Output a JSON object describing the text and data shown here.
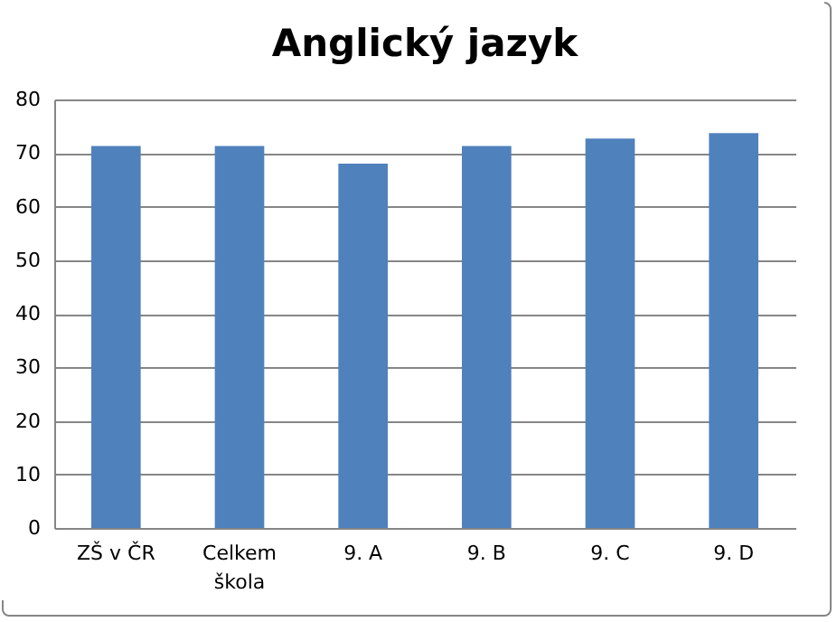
{
  "chart_data": {
    "type": "bar",
    "title": "Anglický jazyk",
    "categories": [
      "ZŠ v ČR",
      "Celkem škola",
      "9. A",
      "9. B",
      "9. C",
      "9. D"
    ],
    "values": [
      71.3,
      71.3,
      68,
      71.3,
      72.7,
      73.7
    ],
    "color": "#4f81bd",
    "ylim": [
      0,
      80
    ],
    "yticks": [
      0,
      10,
      20,
      30,
      40,
      50,
      60,
      70,
      80
    ],
    "grid": true
  }
}
